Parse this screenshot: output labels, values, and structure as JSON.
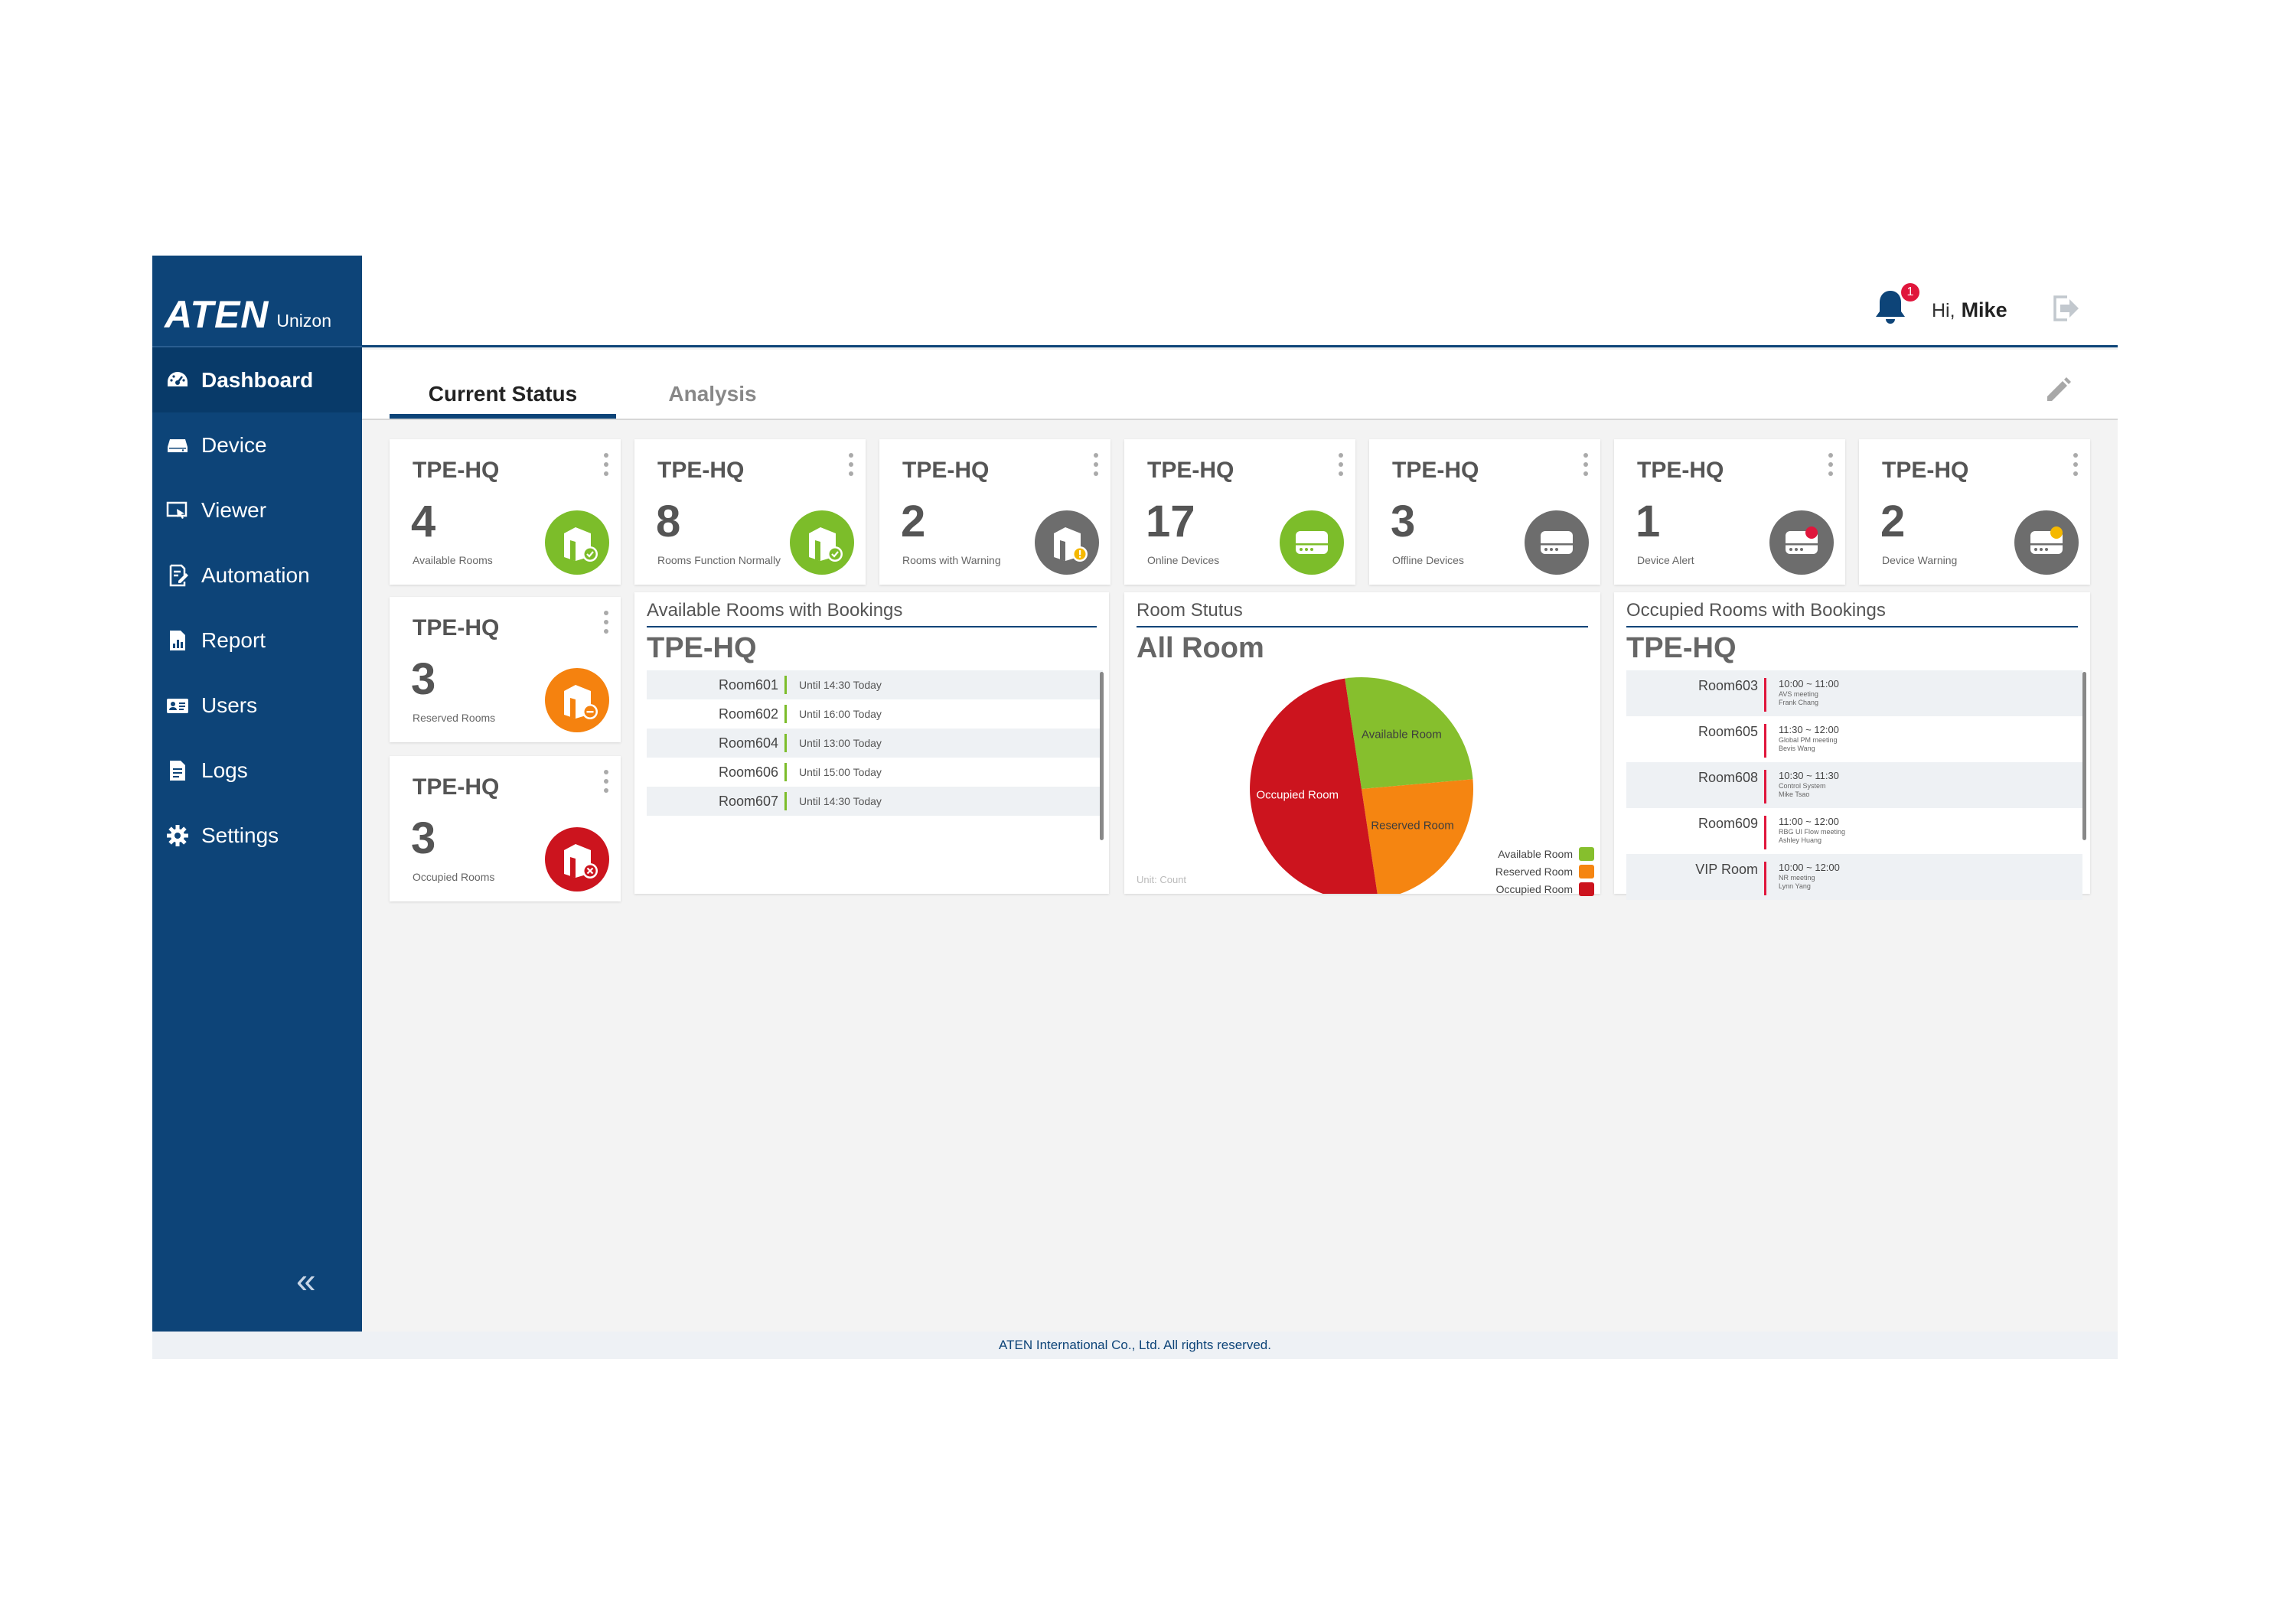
{
  "brand": {
    "logo": "ATEN",
    "product": "Unizon"
  },
  "sidebar": {
    "items": [
      {
        "label": "Dashboard",
        "icon": "dashboard-icon",
        "active": true
      },
      {
        "label": "Device",
        "icon": "device-icon"
      },
      {
        "label": "Viewer",
        "icon": "viewer-icon"
      },
      {
        "label": "Automation",
        "icon": "automation-icon"
      },
      {
        "label": "Report",
        "icon": "report-icon"
      },
      {
        "label": "Users",
        "icon": "users-icon"
      },
      {
        "label": "Logs",
        "icon": "logs-icon"
      },
      {
        "label": "Settings",
        "icon": "gear-icon"
      }
    ],
    "collapse_label": "«"
  },
  "header": {
    "notification_count": "1",
    "greeting": "Hi,",
    "user_name": "Mike"
  },
  "tabs": [
    {
      "label": "Current Status",
      "active": true
    },
    {
      "label": "Analysis"
    }
  ],
  "stats": [
    {
      "site": "TPE-HQ",
      "count": "4",
      "label": "Available Rooms",
      "color": "#7cbd2a",
      "icon": "room-ok-icon"
    },
    {
      "site": "TPE-HQ",
      "count": "8",
      "label": "Rooms Function Normally",
      "color": "#7cbd2a",
      "icon": "room-ok-icon"
    },
    {
      "site": "TPE-HQ",
      "count": "2",
      "label": "Rooms with Warning",
      "color": "#6d6d6d",
      "icon": "room-warning-icon"
    },
    {
      "site": "TPE-HQ",
      "count": "17",
      "label": "Online Devices",
      "color": "#7cbd2a",
      "icon": "device-online-icon"
    },
    {
      "site": "TPE-HQ",
      "count": "3",
      "label": "Offline Devices",
      "color": "#6d6d6d",
      "icon": "device-offline-icon"
    },
    {
      "site": "TPE-HQ",
      "count": "1",
      "label": "Device Alert",
      "color": "#6d6d6d",
      "icon": "device-alert-icon"
    },
    {
      "site": "TPE-HQ",
      "count": "2",
      "label": "Device Warning",
      "color": "#6d6d6d",
      "icon": "device-warning-icon"
    },
    {
      "site": "TPE-HQ",
      "count": "3",
      "label": "Reserved Rooms",
      "color": "#f5820f",
      "icon": "room-reserved-icon"
    },
    {
      "site": "TPE-HQ",
      "count": "3",
      "label": "Occupied Rooms",
      "color": "#cc141e",
      "icon": "room-occupied-icon"
    }
  ],
  "available": {
    "heading": "Available Rooms with Bookings",
    "site": "TPE-HQ",
    "rows": [
      {
        "room": "Room601",
        "info": "Until 14:30 Today"
      },
      {
        "room": "Room602",
        "info": "Until 16:00 Today"
      },
      {
        "room": "Room604",
        "info": "Until 13:00 Today"
      },
      {
        "room": "Room606",
        "info": "Until 15:00 Today"
      },
      {
        "room": "Room607",
        "info": "Until 14:30 Today"
      }
    ]
  },
  "room_status": {
    "heading": "Room Stutus",
    "title": "All Room",
    "unit": "Unit: Count",
    "colors": {
      "available": "#86bf2d",
      "reserved": "#f58511",
      "occupied": "#cc141e"
    }
  },
  "chart_data": {
    "type": "pie",
    "title": "All Room",
    "categories": [
      "Available Room",
      "Reserved Room",
      "Occupied Room"
    ],
    "values": [
      26,
      24,
      50
    ],
    "legend": "bottom-right"
  },
  "occupied": {
    "heading": "Occupied Rooms with Bookings",
    "site": "TPE-HQ",
    "rows": [
      {
        "room": "Room603",
        "time": "10:00 ~ 11:00",
        "l1": "AVS meeting",
        "l2": "Frank Chang"
      },
      {
        "room": "Room605",
        "time": "11:30 ~ 12:00",
        "l1": "Global PM meeting",
        "l2": "Bevis Wang"
      },
      {
        "room": "Room608",
        "time": "10:30 ~ 11:30",
        "l1": "Control System",
        "l2": "Mike Tsao"
      },
      {
        "room": "Room609",
        "time": "11:00 ~ 12:00",
        "l1": "RBG UI Flow meeting",
        "l2": "Ashley Huang"
      },
      {
        "room": "VIP Room",
        "time": "10:00 ~ 12:00",
        "l1": "NR meeting",
        "l2": "Lynn Yang"
      }
    ]
  },
  "footer": "ATEN International Co., Ltd. All rights reserved."
}
